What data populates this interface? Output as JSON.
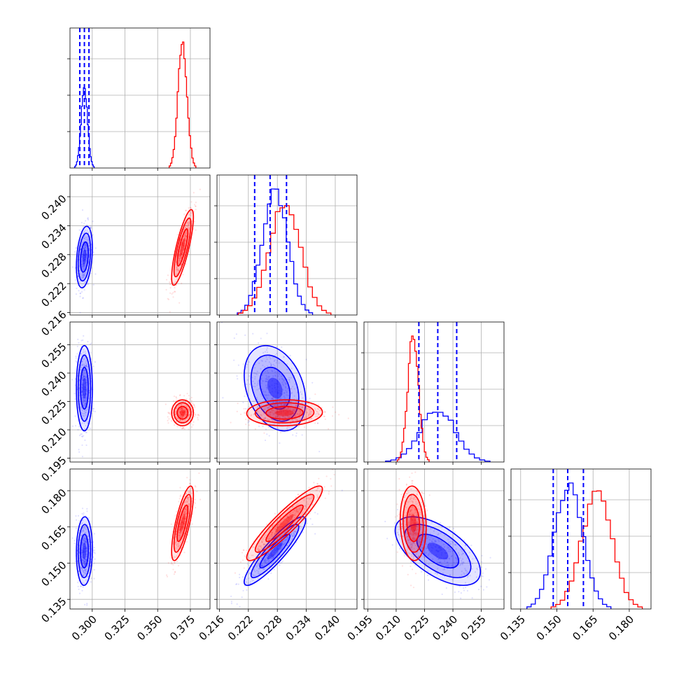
{
  "chart_data": {
    "type": "corner",
    "colors": {
      "set_a": "#0000ff",
      "set_b": "#ff0000"
    },
    "grid": true,
    "parameters": [
      {
        "range": [
          0.283,
          0.39
        ],
        "ticks": [
          0.3,
          0.325,
          0.35,
          0.375
        ],
        "tick_labels": [
          "0.300",
          "0.325",
          "0.350",
          "0.375"
        ]
      },
      {
        "range": [
          0.2155,
          0.2445
        ],
        "ticks": [
          0.216,
          0.222,
          0.228,
          0.234,
          0.24
        ],
        "tick_labels": [
          "0.216",
          "0.222",
          "0.228",
          "0.234",
          "0.240"
        ]
      },
      {
        "range": [
          0.193,
          0.267
        ],
        "ticks": [
          0.195,
          0.21,
          0.225,
          0.24,
          0.255
        ],
        "tick_labels": [
          "0.195",
          "0.210",
          "0.225",
          "0.240",
          "0.255"
        ]
      },
      {
        "range": [
          0.131,
          0.189
        ],
        "ticks": [
          0.135,
          0.15,
          0.165,
          0.18
        ],
        "tick_labels": [
          "0.135",
          "0.150",
          "0.165",
          "0.180"
        ]
      }
    ],
    "series": [
      {
        "color": "#0000ff",
        "mean": [
          0.294,
          0.2275,
          0.232,
          0.155
        ],
        "std": [
          0.0025,
          0.0026,
          0.0092,
          0.0058
        ],
        "corr": [
          [
            1,
            0.3,
            0.0,
            0.05
          ],
          [
            0.3,
            1,
            -0.3,
            0.9
          ],
          [
            0.0,
            -0.3,
            1,
            -0.6
          ],
          [
            0.05,
            0.9,
            -0.6,
            1
          ]
        ],
        "quantiles": [
          [
            0.2905,
            0.294,
            0.2975
          ],
          [
            0.2233,
            0.2265,
            0.2299
          ],
          [
            0.222,
            0.232,
            0.242
          ],
          [
            0.1485,
            0.1545,
            0.161
          ]
        ],
        "hist_peak": [
          0.62,
          1.0,
          0.42,
          1.0
        ]
      },
      {
        "color": "#ff0000",
        "mean": [
          0.369,
          0.2295,
          0.219,
          0.1665
        ],
        "std": [
          0.0034,
          0.0032,
          0.0028,
          0.0063
        ],
        "corr": [
          [
            1,
            0.8,
            0.0,
            0.75
          ],
          [
            0.8,
            1,
            0.05,
            0.92
          ],
          [
            0.0,
            0.05,
            1,
            -0.1
          ],
          [
            0.75,
            0.92,
            -0.1,
            1
          ]
        ],
        "hist_peak": [
          1.0,
          0.9,
          1.0,
          0.92
        ]
      }
    ]
  }
}
